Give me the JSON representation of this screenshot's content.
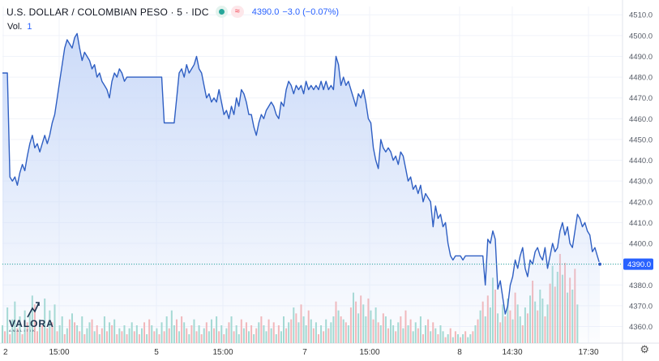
{
  "legend": {
    "title": "U.S. DOLLAR / COLOMBIAN PESO · 5 · IDC",
    "approx_label": "≈",
    "last": "4390.0",
    "change": "−3.0 (−0.07%)"
  },
  "volume": {
    "label": "Vol.",
    "value": "1"
  },
  "logo": {
    "name": "VALORA",
    "sub": "ANALITIK"
  },
  "colors": {
    "line": "#2f5fc3",
    "fill": "#c9d9f8",
    "vol_up": "#9fd9cf",
    "vol_down": "#f6b3b3",
    "last_dot": "#26a69a",
    "price_tag": "#2962ff"
  },
  "chart_data": {
    "type": "area",
    "title": "U.S. DOLLAR / COLOMBIAN PESO · 5 · IDC",
    "ylim": [
      4352,
      4514
    ],
    "y_ticks": [
      "4510.0",
      "4500.0",
      "4490.0",
      "4480.0",
      "4470.0",
      "4460.0",
      "4450.0",
      "4440.0",
      "4430.0",
      "4420.0",
      "4410.0",
      "4400.0",
      "4390.0",
      "4380.0",
      "4370.0",
      "4360.0"
    ],
    "x_ticks": [
      "2",
      "15:00",
      "5",
      "15:00",
      "7",
      "15:00",
      "8",
      "14:30",
      "17:30"
    ],
    "last_price_label": "4390.0",
    "last_price": 4390,
    "grid": true,
    "series": [
      {
        "values": [
          4482,
          4482,
          4482,
          4432,
          4430,
          4432,
          4428,
          4434,
          4438,
          4435,
          4442,
          4448,
          4452,
          4446,
          4448,
          4444,
          4448,
          4452,
          4448,
          4452,
          4458,
          4462,
          4470,
          4478,
          4486,
          4494,
          4498,
          4496,
          4494,
          4499,
          4501,
          4494,
          4488,
          4492,
          4490,
          4488,
          4484,
          4486,
          4480,
          4482,
          4478,
          4476,
          4474,
          4470,
          4478,
          4482,
          4480,
          4484,
          4482,
          4478,
          4480,
          4480,
          4480,
          4480,
          4480,
          4480,
          4480,
          4480,
          4480,
          4480,
          4480,
          4480,
          4480,
          4480,
          4480,
          4458,
          4458,
          4458,
          4458,
          4458,
          4470,
          4482,
          4484,
          4480,
          4486,
          4482,
          4484,
          4486,
          4490,
          4484,
          4482,
          4476,
          4470,
          4472,
          4468,
          4470,
          4468,
          4474,
          4468,
          4462,
          4464,
          4460,
          4466,
          4462,
          4470,
          4466,
          4474,
          4472,
          4468,
          4462,
          4462,
          4456,
          4452,
          4458,
          4462,
          4460,
          4464,
          4466,
          4468,
          4466,
          4462,
          4460,
          4468,
          4466,
          4474,
          4478,
          4476,
          4472,
          4476,
          4474,
          4476,
          4472,
          4478,
          4474,
          4476,
          4474,
          4476,
          4474,
          4478,
          4474,
          4478,
          4474,
          4476,
          4474,
          4490,
          4486,
          4476,
          4480,
          4476,
          4478,
          4474,
          4470,
          4466,
          4472,
          4470,
          4474,
          4468,
          4460,
          4458,
          4446,
          4440,
          4436,
          4450,
          4446,
          4444,
          4446,
          4444,
          4440,
          4442,
          4438,
          4444,
          4442,
          4436,
          4430,
          4432,
          4426,
          4428,
          4424,
          4428,
          4420,
          4424,
          4422,
          4420,
          4408,
          4418,
          4412,
          4414,
          4408,
          4410,
          4400,
          4394,
          4392,
          4394,
          4394,
          4394,
          4392,
          4394,
          4394,
          4394,
          4394,
          4394,
          4394,
          4394,
          4394,
          4380,
          4402,
          4400,
          4406,
          4402,
          4378,
          4382,
          4374,
          4366,
          4370,
          4380,
          4384,
          4392,
          4388,
          4394,
          4398,
          4388,
          4384,
          4392,
          4390,
          4396,
          4398,
          4394,
          4392,
          4398,
          4388,
          4394,
          4400,
          4396,
          4398,
          4406,
          4410,
          4404,
          4408,
          4400,
          4398,
          4406,
          4414,
          4412,
          4408,
          4410,
          4406,
          4404,
          4396,
          4398,
          4394,
          4390
        ]
      },
      {
        "name": "Vol.",
        "values": [
          6,
          4,
          12,
          3,
          8,
          14,
          5,
          9,
          3,
          11,
          7,
          10,
          16,
          13,
          4,
          8,
          6,
          15,
          5,
          11,
          7,
          13,
          4,
          6,
          9,
          3,
          5,
          8,
          10,
          7,
          6,
          4,
          9,
          3,
          5,
          7,
          8,
          4,
          6,
          3,
          5,
          9,
          4,
          7,
          6,
          8,
          3,
          5,
          4,
          6,
          3,
          5,
          7,
          4,
          6,
          3,
          5,
          7,
          3,
          8,
          6,
          4,
          5,
          3,
          7,
          4,
          9,
          5,
          11,
          6,
          8,
          4,
          9,
          7,
          5,
          3,
          6,
          8,
          4,
          6,
          3,
          5,
          7,
          4,
          8,
          5,
          9,
          4,
          6,
          3,
          5,
          7,
          9,
          4,
          6,
          3,
          8,
          5,
          7,
          4,
          6,
          3,
          5,
          7,
          9,
          6,
          4,
          8,
          5,
          7,
          3,
          6,
          4,
          9,
          5,
          7,
          8,
          12,
          10,
          7,
          13,
          9,
          6,
          11,
          8,
          5,
          7,
          3,
          6,
          4,
          8,
          5,
          7,
          9,
          14,
          11,
          9,
          8,
          7,
          6,
          12,
          17,
          14,
          10,
          16,
          13,
          9,
          15,
          11,
          8,
          12,
          7,
          6,
          10,
          9,
          5,
          8,
          6,
          4,
          7,
          9,
          5,
          11,
          6,
          8,
          4,
          7,
          5,
          9,
          3,
          6,
          8,
          4,
          7,
          5,
          3,
          6,
          4,
          2,
          3,
          5,
          2,
          4,
          3,
          2,
          3,
          4,
          2,
          3,
          4,
          6,
          8,
          11,
          14,
          9,
          16,
          12,
          22,
          18,
          10,
          7,
          13,
          9,
          15,
          11,
          8,
          17,
          13,
          9,
          6,
          12,
          10,
          16,
          21,
          14,
          11,
          18,
          15,
          9,
          13,
          20,
          26,
          19,
          24,
          30,
          23,
          27,
          17,
          22,
          18,
          25,
          13
        ],
        "up": [
          1,
          0,
          1,
          0,
          1,
          1,
          0,
          1,
          0,
          1,
          0,
          1,
          1,
          0,
          0,
          1,
          0,
          1,
          0,
          1,
          0,
          1,
          0,
          1,
          1,
          0,
          1,
          0,
          1,
          0,
          1,
          0,
          1,
          0,
          1,
          1,
          0,
          1,
          0,
          1,
          0,
          1,
          0,
          1,
          0,
          1,
          0,
          1,
          0,
          1,
          0,
          1,
          1,
          0,
          1,
          0,
          1,
          0,
          1,
          0,
          1,
          0,
          1,
          0,
          1,
          0,
          1,
          0,
          1,
          1,
          0,
          1,
          0,
          1,
          0,
          1,
          0,
          1,
          0,
          1,
          0,
          1,
          0,
          1,
          1,
          0,
          1,
          0,
          1,
          0,
          1,
          0,
          1,
          0,
          1,
          1,
          0,
          1,
          0,
          1,
          0,
          1,
          0,
          1,
          0,
          1,
          1,
          0,
          1,
          0,
          1,
          0,
          1,
          1,
          0,
          1,
          0,
          1,
          0,
          1,
          0,
          1,
          1,
          0,
          1,
          0,
          1,
          0,
          1,
          0,
          1,
          0,
          1,
          1,
          0,
          1,
          0,
          1,
          0,
          1,
          0,
          1,
          0,
          1,
          0,
          1,
          1,
          0,
          1,
          0,
          1,
          0,
          1,
          0,
          1,
          0,
          1,
          1,
          0,
          1,
          0,
          1,
          0,
          1,
          0,
          1,
          1,
          0,
          1,
          0,
          1,
          0,
          1,
          0,
          1,
          0,
          1,
          1,
          0,
          1,
          0,
          1,
          0,
          1,
          0,
          1,
          0,
          1,
          1,
          0,
          1,
          0,
          1,
          0,
          1,
          0,
          1,
          1,
          0,
          1,
          0,
          1,
          0,
          1,
          0,
          1,
          0,
          1,
          1,
          0,
          1,
          0,
          1,
          0,
          1,
          0,
          1,
          1,
          0,
          1,
          0,
          1,
          0,
          1,
          0,
          1,
          0,
          1,
          0,
          1,
          0,
          1,
          0,
          1,
          0,
          0
        ]
      }
    ]
  }
}
